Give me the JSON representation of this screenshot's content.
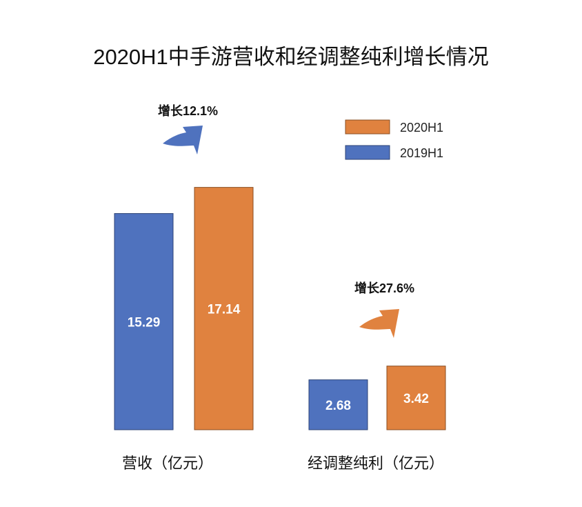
{
  "chart_data": {
    "type": "bar",
    "title": "2020H1中手游营收和经调整纯利增长情况",
    "categories": [
      "营收（亿元）",
      "经调整纯利（亿元）"
    ],
    "series": [
      {
        "name": "2020H1",
        "values": [
          17.14,
          3.42
        ],
        "color": "#E0823F"
      },
      {
        "name": "2019H1",
        "values": [
          15.29,
          2.68
        ],
        "color": "#4F72BE"
      }
    ],
    "value_labels": {
      "2019H1": [
        "15.29",
        "2.68"
      ],
      "2020H1": [
        "17.14",
        "3.42"
      ]
    },
    "annotations": [
      "增长12.1%",
      "增长27.6%"
    ],
    "legend": [
      "2020H1",
      "2019H1"
    ],
    "legend_placement": "top-right",
    "grid": false,
    "xlabel": "",
    "ylabel": ""
  }
}
